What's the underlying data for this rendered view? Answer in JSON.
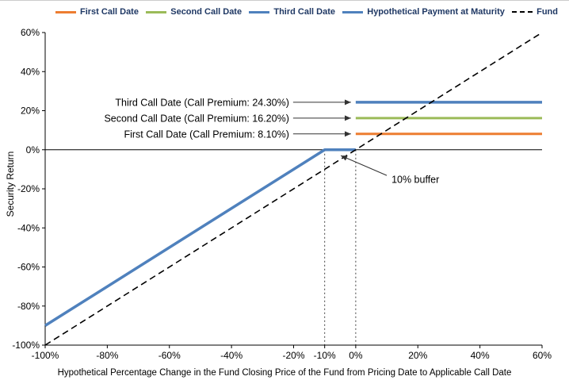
{
  "chart_data": {
    "type": "line",
    "title": "",
    "xlabel": "Hypothetical Percentage Change in the Fund Closing Price of the Fund from Pricing Date to Applicable Call Date",
    "ylabel": "Security Return",
    "xlim": [
      -100,
      60
    ],
    "ylim": [
      -100,
      60
    ],
    "grid": false,
    "legend_position": "top",
    "x_ticks": [
      -100,
      -80,
      -60,
      -40,
      -20,
      -10,
      0,
      20,
      40,
      60
    ],
    "x_tick_labels": [
      "-100%",
      "-80%",
      "-60%",
      "-40%",
      "-20%",
      "-10%",
      "0%",
      "20%",
      "40%",
      "60%"
    ],
    "y_ticks": [
      60,
      40,
      20,
      0,
      -20,
      -40,
      -60,
      -80,
      -100
    ],
    "y_tick_labels": [
      "60%",
      "40%",
      "20%",
      "0%",
      "-20%",
      "-40%",
      "-60%",
      "-80%",
      "-100%"
    ],
    "series": [
      {
        "name": "First Call Date",
        "color": "#ED7D31",
        "dash": "solid",
        "width": 3,
        "points": [
          [
            0,
            8.1
          ],
          [
            60,
            8.1
          ]
        ]
      },
      {
        "name": "Second Call Date",
        "color": "#9BBB59",
        "dash": "solid",
        "width": 3,
        "points": [
          [
            0,
            16.2
          ],
          [
            60,
            16.2
          ]
        ]
      },
      {
        "name": "Third Call Date",
        "color": "#4F81BD",
        "dash": "solid",
        "width": 3.5,
        "points": [
          [
            0,
            24.3
          ],
          [
            60,
            24.3
          ]
        ]
      },
      {
        "name": "Hypothetical Payment at Maturity",
        "color": "#4F81BD",
        "dash": "solid",
        "width": 3.5,
        "points": [
          [
            -100,
            -90
          ],
          [
            -10,
            0
          ],
          [
            0,
            0
          ]
        ]
      },
      {
        "name": "Fund",
        "color": "#000000",
        "dash": "dashed",
        "width": 1.6,
        "points": [
          [
            -100,
            -100
          ],
          [
            60,
            60
          ]
        ]
      }
    ],
    "guides": [
      {
        "from": [
          -10,
          0
        ],
        "to": [
          -10,
          -100
        ]
      },
      {
        "from": [
          0,
          0
        ],
        "to": [
          0,
          -100
        ]
      }
    ],
    "annotations": [
      {
        "text": "Third Call Date (Call Premium: 24.30%)",
        "tip": [
          0,
          24.3
        ],
        "label_offset": [
          -84,
          0
        ],
        "anchor": "end"
      },
      {
        "text": "Second Call Date (Call Premium: 16.20%)",
        "tip": [
          0,
          16.2
        ],
        "label_offset": [
          -84,
          0
        ],
        "anchor": "end"
      },
      {
        "text": "First Call Date (Call Premium: 8.10%)",
        "tip": [
          0,
          8.1
        ],
        "label_offset": [
          -84,
          0
        ],
        "anchor": "end"
      },
      {
        "text": "10% buffer",
        "tip": [
          -4.8,
          -3
        ],
        "label_offset": [
          64,
          30
        ],
        "anchor": "start"
      }
    ]
  }
}
